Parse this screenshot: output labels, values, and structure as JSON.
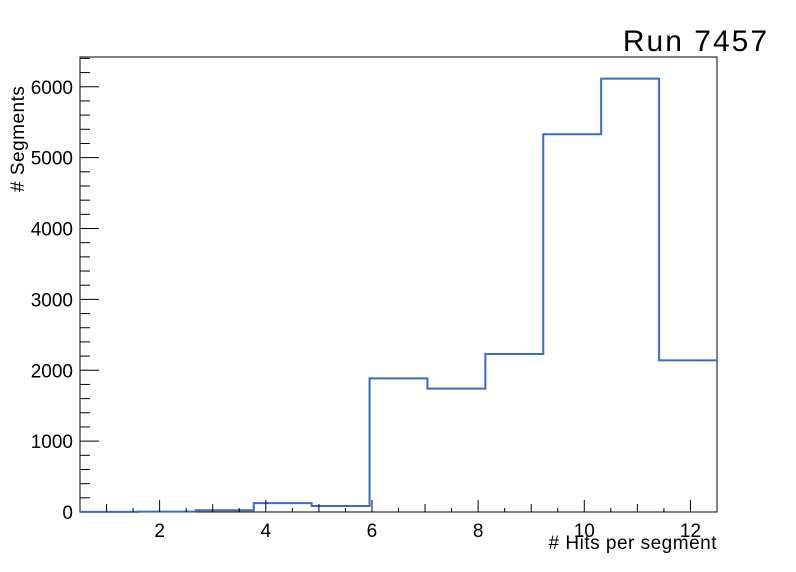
{
  "window": {
    "background_color": "#ffffff",
    "text_color": "#000000"
  },
  "chart_data": {
    "type": "histogram-step",
    "title": "Run 7457",
    "xlabel": "# Hits per segment",
    "ylabel": "# Segments",
    "line_color": "#3a6bc8",
    "frame_color": "#000000",
    "grid": false,
    "legend": "none",
    "xlim": [
      0.5,
      12.5
    ],
    "ylim": [
      0,
      6420
    ],
    "n_bins": 11,
    "bin_edges": [
      0.5,
      1.591,
      2.682,
      3.773,
      4.864,
      5.955,
      7.045,
      8.136,
      9.227,
      10.318,
      11.409,
      12.5
    ],
    "values": [
      2,
      6,
      25,
      125,
      85,
      1885,
      1740,
      2230,
      5330,
      6115,
      2140
    ],
    "x_major_tick_labels": [
      "2",
      "4",
      "6",
      "8",
      "10",
      "12"
    ],
    "x_major_ticks": [
      2,
      4,
      6,
      8,
      10,
      12
    ],
    "x_medium_ticks": [
      1,
      3,
      5,
      7,
      9,
      11
    ],
    "x_minor_step": 0.5,
    "y_major_tick_labels": [
      "0",
      "1000",
      "2000",
      "3000",
      "4000",
      "5000",
      "6000"
    ],
    "y_major_step": 1000,
    "y_minor_step": 200
  }
}
